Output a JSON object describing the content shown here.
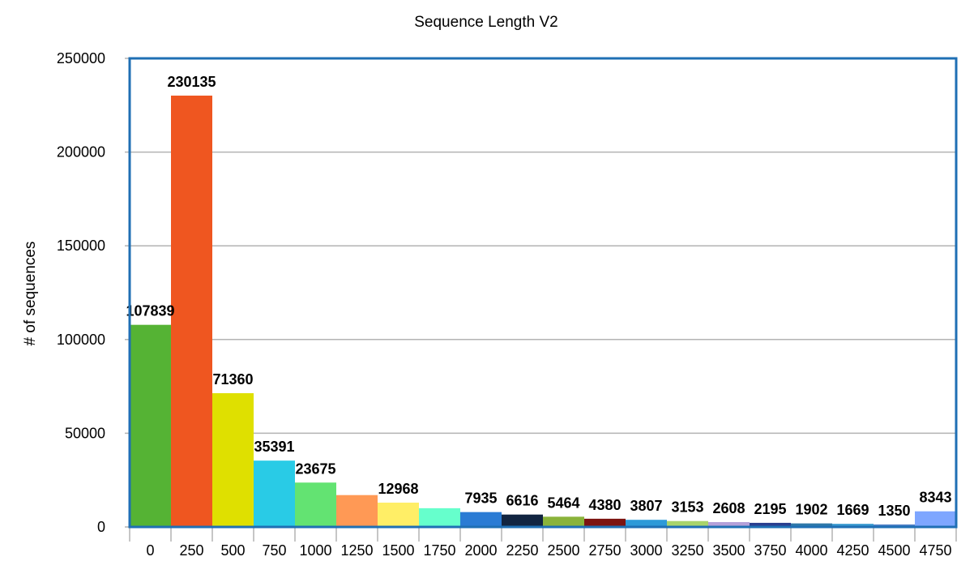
{
  "chart_data": {
    "type": "bar",
    "title": "Sequence Length V2",
    "ylabel": "# of sequences",
    "xlabel": "",
    "ylim": [
      0,
      250000
    ],
    "yticks": [
      "0",
      "50000",
      "100000",
      "150000",
      "200000",
      "250000"
    ],
    "grid": true,
    "legend": "none",
    "categories": [
      "0",
      "250",
      "500",
      "750",
      "1000",
      "1250",
      "1500",
      "1750",
      "2000",
      "2250",
      "2500",
      "2750",
      "3000",
      "3250",
      "3500",
      "3750",
      "4000",
      "4250",
      "4500",
      "4750"
    ],
    "values": [
      107839,
      230135,
      71360,
      35391,
      23675,
      17000,
      12968,
      10000,
      7935,
      6616,
      5464,
      4380,
      3807,
      3153,
      2608,
      2195,
      1902,
      1669,
      1350,
      8343
    ],
    "data_labels": [
      "107839",
      "230135",
      "71360",
      "35391",
      "23675",
      "",
      "12968",
      "",
      "7935",
      "6616",
      "5464",
      "4380",
      "3807",
      "3153",
      "2608",
      "2195",
      "1902",
      "1669",
      "1350",
      "8343"
    ],
    "colors": [
      "#55b334",
      "#ef5620",
      "#dfe000",
      "#29cbe6",
      "#63e372",
      "#ff9955",
      "#ffee66",
      "#66ffcc",
      "#2a7bd4",
      "#122541",
      "#8ab33a",
      "#7c1411",
      "#2d9ad8",
      "#a9d46b",
      "#b4a0d9",
      "#2a3e8f",
      "#2e78a8",
      "#3a9ad0",
      "#5282c8",
      "#7ea6ff"
    ]
  }
}
